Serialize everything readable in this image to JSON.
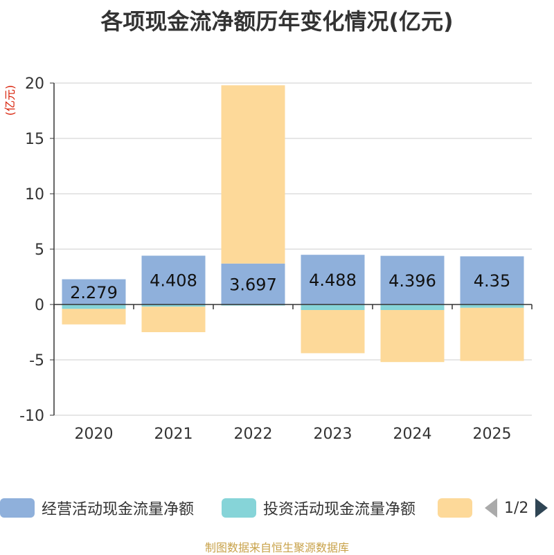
{
  "title": "各项现金流净额历年变化情况(亿元)",
  "source_note": "制图数据来自恒生聚源数据库",
  "pager": {
    "text": "1/2"
  },
  "chart_data": {
    "type": "bar",
    "stacked": true,
    "title": "各项现金流净额历年变化情况(亿元)",
    "ylabel": "(亿元)",
    "xlabel": "",
    "ylim": [
      -10,
      20
    ],
    "yticks": [
      -10,
      -5,
      0,
      5,
      10,
      15,
      20
    ],
    "grid": true,
    "legend_position": "bottom",
    "categories": [
      "2020",
      "2021",
      "2022",
      "2023",
      "2024",
      "2025"
    ],
    "series": [
      {
        "name": "经营活动现金流量净额",
        "color": "#8fb0db",
        "values": [
          2.279,
          4.408,
          3.697,
          4.488,
          4.396,
          4.35
        ],
        "labels": [
          "2.279",
          "4.408",
          "3.697",
          "4.488",
          "4.396",
          "4.35"
        ]
      },
      {
        "name": "投资活动现金流量净额",
        "color": "#86d4d8",
        "values": [
          -0.4,
          -0.2,
          -0.1,
          -0.5,
          -0.5,
          -0.3
        ]
      },
      {
        "name": "",
        "color": "#fdd999",
        "values": [
          -1.4,
          -2.3,
          16.1,
          -3.9,
          -4.7,
          -4.8
        ]
      }
    ]
  }
}
